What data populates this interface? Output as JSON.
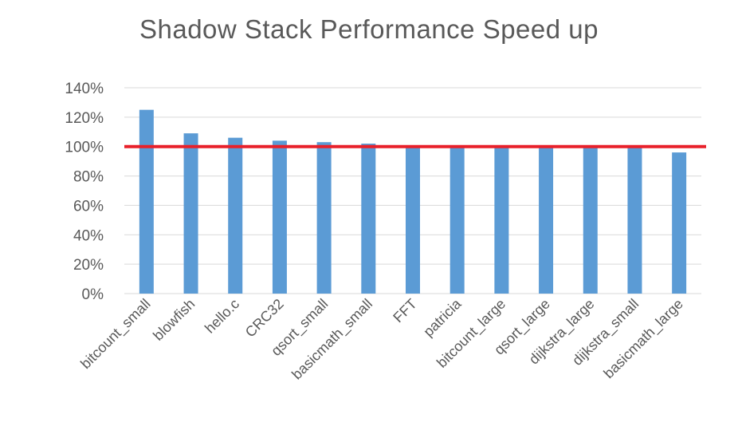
{
  "chart_data": {
    "type": "bar",
    "title": "Shadow Stack Performance Speed up",
    "xlabel": "",
    "ylabel": "",
    "categories": [
      "bitcount_small",
      "blowfish",
      "hello.c",
      "CRC32",
      "qsort_small",
      "basicmath_small",
      "FFT",
      "patricia",
      "bitcount_large",
      "qsort_large",
      "dijkstra_large",
      "dijkstra_small",
      "basicmath_large"
    ],
    "series": [
      {
        "values": [
          125,
          109,
          106,
          104,
          103,
          102,
          100,
          100,
          100,
          100,
          100,
          100,
          96
        ]
      }
    ],
    "ylim": [
      0,
      140
    ],
    "yticks": [
      "0%",
      "20%",
      "40%",
      "60%",
      "80%",
      "100%",
      "120%",
      "140%"
    ],
    "reference_line": {
      "value": 100,
      "color": "#e8202a"
    },
    "bar_color": "#5b9bd5",
    "grid": true,
    "legend": "none"
  }
}
